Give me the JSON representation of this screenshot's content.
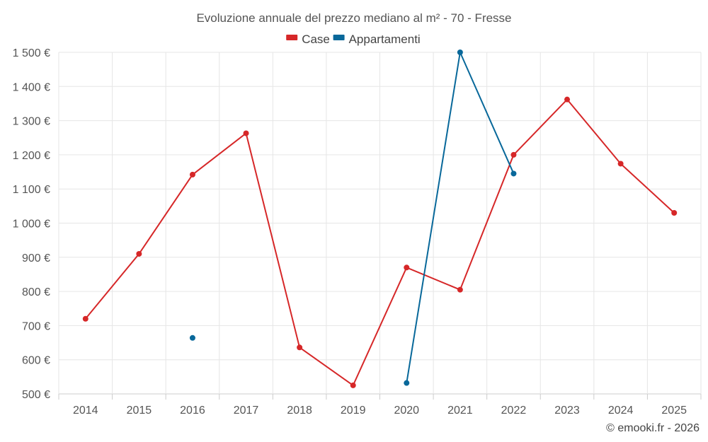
{
  "chart_data": {
    "type": "line",
    "title": "Evoluzione annuale del prezzo mediano al m² - 70 - Fresse",
    "categories": [
      "2014",
      "2015",
      "2016",
      "2017",
      "2018",
      "2019",
      "2020",
      "2021",
      "2022",
      "2023",
      "2024",
      "2025"
    ],
    "y_tick_labels": [
      "500 €",
      "600 €",
      "700 €",
      "800 €",
      "900 €",
      "1 000 €",
      "1 100 €",
      "1 200 €",
      "1 300 €",
      "1 400 €",
      "1 500 €"
    ],
    "ylim": [
      500,
      1500
    ],
    "grid": true,
    "legend_position": "top-center",
    "series": [
      {
        "name": "Case",
        "color": "#d62728",
        "values": [
          720,
          910,
          1142,
          1263,
          636,
          525,
          870,
          805,
          1200,
          1362,
          1174,
          1030
        ]
      },
      {
        "name": "Appartamenti",
        "color": "#08689a",
        "values": [
          null,
          null,
          664,
          null,
          null,
          null,
          532,
          1500,
          1145,
          null,
          null,
          null
        ]
      }
    ]
  },
  "credit": "© emooki.fr - 2026"
}
